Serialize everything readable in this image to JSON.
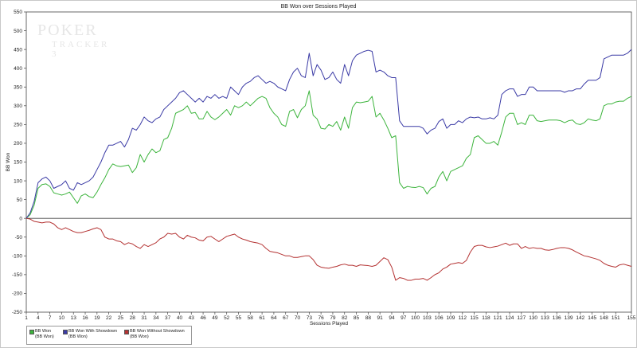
{
  "chart_data": {
    "type": "line",
    "title": "BB Won over Sessions Played",
    "xlabel": "Sessions Played",
    "ylabel": "BB Won",
    "xlim": [
      1,
      155
    ],
    "ylim": [
      -250,
      550
    ],
    "yticks": [
      550,
      500,
      450,
      400,
      350,
      300,
      250,
      200,
      150,
      100,
      50,
      0,
      -50,
      -100,
      -150,
      -200,
      -250
    ],
    "xticks": [
      1,
      4,
      7,
      10,
      13,
      16,
      19,
      22,
      25,
      28,
      31,
      34,
      37,
      40,
      43,
      46,
      49,
      52,
      55,
      58,
      61,
      64,
      67,
      70,
      73,
      76,
      79,
      82,
      85,
      88,
      91,
      94,
      97,
      100,
      103,
      106,
      109,
      112,
      115,
      118,
      121,
      124,
      127,
      130,
      133,
      136,
      139,
      142,
      145,
      148,
      151,
      155
    ],
    "grid": false,
    "legend_position": "bottom-left",
    "series": [
      {
        "name": "BB Won",
        "unit": "(BB Won)",
        "color": "#3cb43c",
        "x": [
          1,
          2,
          3,
          4,
          5,
          6,
          7,
          8,
          9,
          10,
          11,
          12,
          13,
          14,
          15,
          16,
          17,
          18,
          19,
          20,
          21,
          22,
          23,
          24,
          25,
          26,
          27,
          28,
          29,
          30,
          31,
          32,
          33,
          34,
          35,
          36,
          37,
          38,
          39,
          40,
          41,
          42,
          43,
          44,
          45,
          46,
          47,
          48,
          49,
          50,
          51,
          52,
          53,
          54,
          55,
          56,
          57,
          58,
          59,
          60,
          61,
          62,
          63,
          64,
          65,
          66,
          67,
          68,
          69,
          70,
          71,
          72,
          73,
          74,
          75,
          76,
          77,
          78,
          79,
          80,
          81,
          82,
          83,
          84,
          85,
          86,
          87,
          88,
          89,
          90,
          91,
          92,
          93,
          94,
          95,
          96,
          97,
          98,
          99,
          100,
          101,
          102,
          103,
          104,
          105,
          106,
          107,
          108,
          109,
          110,
          111,
          112,
          113,
          114,
          115,
          116,
          117,
          118,
          119,
          120,
          121,
          122,
          123,
          124,
          125,
          126,
          127,
          128,
          129,
          130,
          131,
          132,
          133,
          134,
          135,
          136,
          137,
          138,
          139,
          140,
          141,
          142,
          143,
          144,
          145,
          146,
          147,
          148,
          149,
          150,
          151,
          152,
          153,
          154,
          155
        ],
        "values": [
          0,
          10,
          35,
          80,
          90,
          92,
          85,
          68,
          65,
          62,
          65,
          70,
          55,
          40,
          60,
          65,
          58,
          55,
          70,
          90,
          108,
          130,
          145,
          140,
          138,
          140,
          142,
          122,
          135,
          170,
          150,
          170,
          185,
          175,
          180,
          210,
          215,
          240,
          280,
          285,
          290,
          300,
          280,
          282,
          265,
          265,
          285,
          270,
          263,
          270,
          280,
          290,
          275,
          300,
          295,
          300,
          310,
          300,
          310,
          320,
          325,
          320,
          295,
          280,
          270,
          250,
          245,
          285,
          290,
          268,
          290,
          300,
          340,
          275,
          265,
          240,
          238,
          250,
          245,
          258,
          235,
          270,
          240,
          295,
          310,
          308,
          310,
          312,
          325,
          270,
          280,
          262,
          240,
          215,
          220,
          95,
          80,
          85,
          83,
          82,
          85,
          82,
          65,
          80,
          85,
          110,
          125,
          100,
          125,
          130,
          135,
          140,
          160,
          170,
          215,
          220,
          210,
          200,
          200,
          205,
          195,
          230,
          270,
          280,
          280,
          250,
          255,
          250,
          275,
          275,
          260,
          258,
          260,
          262,
          262,
          262,
          260,
          255,
          260,
          262,
          252,
          250,
          255,
          265,
          262,
          260,
          265,
          300,
          305,
          305,
          310,
          312,
          312,
          320,
          325
        ]
      },
      {
        "name": "BB Won With Showdown",
        "unit": "(BB Won)",
        "color": "#3a3aa5",
        "x": [
          1,
          2,
          3,
          4,
          5,
          6,
          7,
          8,
          9,
          10,
          11,
          12,
          13,
          14,
          15,
          16,
          17,
          18,
          19,
          20,
          21,
          22,
          23,
          24,
          25,
          26,
          27,
          28,
          29,
          30,
          31,
          32,
          33,
          34,
          35,
          36,
          37,
          38,
          39,
          40,
          41,
          42,
          43,
          44,
          45,
          46,
          47,
          48,
          49,
          50,
          51,
          52,
          53,
          54,
          55,
          56,
          57,
          58,
          59,
          60,
          61,
          62,
          63,
          64,
          65,
          66,
          67,
          68,
          69,
          70,
          71,
          72,
          73,
          74,
          75,
          76,
          77,
          78,
          79,
          80,
          81,
          82,
          83,
          84,
          85,
          86,
          87,
          88,
          89,
          90,
          91,
          92,
          93,
          94,
          95,
          96,
          97,
          98,
          99,
          100,
          101,
          102,
          103,
          104,
          105,
          106,
          107,
          108,
          109,
          110,
          111,
          112,
          113,
          114,
          115,
          116,
          117,
          118,
          119,
          120,
          121,
          122,
          123,
          124,
          125,
          126,
          127,
          128,
          129,
          130,
          131,
          132,
          133,
          134,
          135,
          136,
          137,
          138,
          139,
          140,
          141,
          142,
          143,
          144,
          145,
          146,
          147,
          148,
          149,
          150,
          151,
          152,
          153,
          154,
          155
        ],
        "values": [
          0,
          15,
          45,
          95,
          105,
          110,
          100,
          80,
          85,
          90,
          100,
          80,
          75,
          95,
          90,
          95,
          100,
          110,
          130,
          150,
          175,
          195,
          195,
          200,
          205,
          190,
          210,
          240,
          235,
          250,
          270,
          260,
          255,
          265,
          270,
          290,
          300,
          310,
          320,
          335,
          340,
          330,
          320,
          310,
          320,
          310,
          325,
          320,
          330,
          320,
          325,
          320,
          350,
          340,
          330,
          350,
          360,
          365,
          375,
          380,
          370,
          360,
          365,
          360,
          350,
          345,
          340,
          370,
          390,
          400,
          380,
          375,
          440,
          380,
          410,
          395,
          370,
          375,
          390,
          370,
          360,
          410,
          380,
          420,
          435,
          440,
          445,
          448,
          445,
          390,
          395,
          390,
          380,
          375,
          375,
          260,
          245,
          245,
          245,
          245,
          245,
          240,
          225,
          235,
          240,
          258,
          265,
          240,
          250,
          250,
          260,
          255,
          265,
          270,
          268,
          270,
          265,
          265,
          268,
          265,
          275,
          330,
          340,
          345,
          345,
          325,
          330,
          330,
          350,
          350,
          340,
          340,
          340,
          340,
          340,
          340,
          340,
          336,
          340,
          340,
          345,
          345,
          358,
          368,
          368,
          368,
          375,
          425,
          430,
          435,
          435,
          435,
          435,
          440,
          450
        ]
      },
      {
        "name": "BB Won Without Showdown",
        "unit": "(BB Won)",
        "color": "#b43232",
        "x": [
          1,
          2,
          3,
          4,
          5,
          6,
          7,
          8,
          9,
          10,
          11,
          12,
          13,
          14,
          15,
          16,
          17,
          18,
          19,
          20,
          21,
          22,
          23,
          24,
          25,
          26,
          27,
          28,
          29,
          30,
          31,
          32,
          33,
          34,
          35,
          36,
          37,
          38,
          39,
          40,
          41,
          42,
          43,
          44,
          45,
          46,
          47,
          48,
          49,
          50,
          51,
          52,
          53,
          54,
          55,
          56,
          57,
          58,
          59,
          60,
          61,
          62,
          63,
          64,
          65,
          66,
          67,
          68,
          69,
          70,
          71,
          72,
          73,
          74,
          75,
          76,
          77,
          78,
          79,
          80,
          81,
          82,
          83,
          84,
          85,
          86,
          87,
          88,
          89,
          90,
          91,
          92,
          93,
          94,
          95,
          96,
          97,
          98,
          99,
          100,
          101,
          102,
          103,
          104,
          105,
          106,
          107,
          108,
          109,
          110,
          111,
          112,
          113,
          114,
          115,
          116,
          117,
          118,
          119,
          120,
          121,
          122,
          123,
          124,
          125,
          126,
          127,
          128,
          129,
          130,
          131,
          132,
          133,
          134,
          135,
          136,
          137,
          138,
          139,
          140,
          141,
          142,
          143,
          144,
          145,
          146,
          147,
          148,
          149,
          150,
          151,
          152,
          153,
          154,
          155
        ],
        "values": [
          0,
          -2,
          -8,
          -10,
          -12,
          -10,
          -10,
          -15,
          -25,
          -30,
          -25,
          -30,
          -35,
          -38,
          -38,
          -35,
          -32,
          -28,
          -25,
          -30,
          -50,
          -55,
          -55,
          -60,
          -62,
          -70,
          -65,
          -68,
          -75,
          -80,
          -70,
          -75,
          -70,
          -65,
          -55,
          -50,
          -40,
          -42,
          -40,
          -50,
          -55,
          -45,
          -50,
          -52,
          -58,
          -60,
          -50,
          -48,
          -55,
          -62,
          -55,
          -48,
          -45,
          -42,
          -50,
          -55,
          -58,
          -62,
          -64,
          -66,
          -70,
          -80,
          -88,
          -90,
          -92,
          -96,
          -100,
          -100,
          -104,
          -104,
          -102,
          -100,
          -100,
          -110,
          -125,
          -130,
          -132,
          -133,
          -130,
          -128,
          -124,
          -122,
          -125,
          -125,
          -128,
          -124,
          -125,
          -126,
          -128,
          -125,
          -115,
          -105,
          -110,
          -130,
          -165,
          -158,
          -160,
          -165,
          -165,
          -162,
          -162,
          -160,
          -165,
          -158,
          -150,
          -145,
          -135,
          -130,
          -122,
          -120,
          -118,
          -120,
          -112,
          -90,
          -75,
          -72,
          -72,
          -76,
          -78,
          -76,
          -74,
          -70,
          -66,
          -72,
          -68,
          -68,
          -80,
          -75,
          -80,
          -78,
          -80,
          -80,
          -84,
          -85,
          -83,
          -80,
          -78,
          -78,
          -80,
          -84,
          -90,
          -95,
          -100,
          -102,
          -105,
          -108,
          -112,
          -120,
          -125,
          -128,
          -130,
          -124,
          -122,
          -125,
          -128
        ]
      }
    ]
  },
  "watermark": {
    "top": "POKER",
    "bottom": "TRACKER 3"
  }
}
